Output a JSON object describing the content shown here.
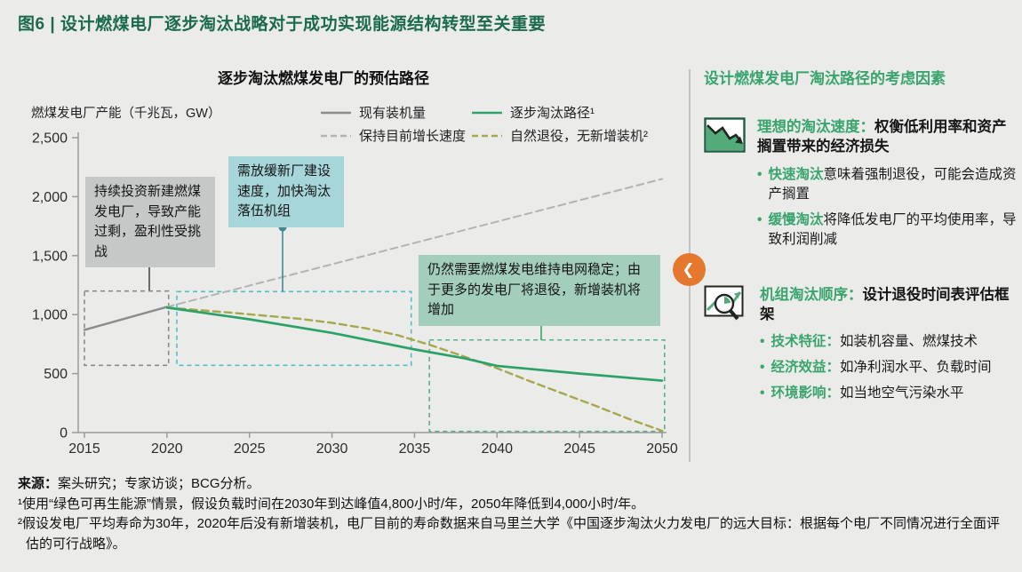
{
  "figure": {
    "title": "图6 | 设计燃煤电厂逐步淘汰战略对于成功实现能源结构转型至关重要"
  },
  "chart": {
    "title": "逐步淘汰燃煤发电厂的预估路径",
    "y_axis_label": "燃煤发电厂产能（千兆瓦，GW）",
    "legend": [
      {
        "label": "现有装机量",
        "color": "#8b8d8c",
        "dash": false
      },
      {
        "label": "逐步淘汰路径¹",
        "color": "#2da268",
        "dash": false
      },
      {
        "label": "保持目前增长速度",
        "color": "#b2b4b3",
        "dash": true
      },
      {
        "label": "自然退役，无新增装机²",
        "color": "#a6a84b",
        "dash": true
      }
    ],
    "annotations": [
      {
        "text": "持续投资新建燃煤发电厂，导致产能过剩，盈利性受挑战"
      },
      {
        "text": "需放缓新厂建设速度，加快淘汰落伍机组"
      },
      {
        "text": "仍然需要燃煤发电维持电网稳定；由于更多的发电厂将退役，新增装机将增加"
      }
    ]
  },
  "chart_data": {
    "type": "line",
    "title": "逐步淘汰燃煤发电厂的预估路径",
    "xlabel": "",
    "ylabel": "燃煤发电厂产能（千兆瓦，GW）",
    "xlim": [
      2015,
      2050
    ],
    "ylim": [
      0,
      2500
    ],
    "x_ticks": [
      2015,
      2020,
      2025,
      2030,
      2035,
      2040,
      2045,
      2050
    ],
    "y_ticks": [
      {
        "value": 2500,
        "label": "2,500"
      },
      {
        "value": 2000,
        "label": "2,000"
      },
      {
        "value": 1500,
        "label": "1,500"
      },
      {
        "value": 1000,
        "label": "1,000"
      },
      {
        "value": 500,
        "label": "500"
      },
      {
        "value": 0,
        "label": "0"
      }
    ],
    "grid": false,
    "legend_position": "top",
    "series": [
      {
        "name": "现有装机量",
        "style": "solid",
        "color": "#8b8d8c",
        "width": 2.4,
        "points": [
          [
            2015,
            870
          ],
          [
            2020,
            1065
          ]
        ]
      },
      {
        "name": "保持目前增长速度",
        "style": "dashed",
        "color": "#b2b4b3",
        "width": 2,
        "points": [
          [
            2020,
            1065
          ],
          [
            2050,
            2150
          ]
        ]
      },
      {
        "name": "自然退役，无新增装机²",
        "style": "dashed",
        "color": "#a6a84b",
        "width": 2.4,
        "points": [
          [
            2020,
            1060
          ],
          [
            2024,
            1015
          ],
          [
            2028,
            965
          ],
          [
            2030,
            930
          ],
          [
            2032,
            885
          ],
          [
            2034,
            825
          ],
          [
            2036,
            740
          ],
          [
            2038,
            645
          ],
          [
            2040,
            545
          ],
          [
            2042,
            435
          ],
          [
            2044,
            330
          ],
          [
            2046,
            225
          ],
          [
            2048,
            115
          ],
          [
            2050,
            15
          ]
        ]
      },
      {
        "name": "逐步淘汰路径¹",
        "style": "solid",
        "color": "#2da268",
        "width": 2.7,
        "points": [
          [
            2020,
            1060
          ],
          [
            2025,
            960
          ],
          [
            2030,
            845
          ],
          [
            2035,
            705
          ],
          [
            2038,
            630
          ],
          [
            2040,
            565
          ],
          [
            2045,
            500
          ],
          [
            2050,
            440
          ]
        ]
      }
    ],
    "highlight_boxes": [
      {
        "x0": 2015,
        "x1": 2020.1,
        "y0": 570,
        "y1": 1200,
        "color": "#8a8c8b"
      },
      {
        "x0": 2020.6,
        "x1": 2034.8,
        "y0": 570,
        "y1": 1195,
        "color": "#55bec2"
      },
      {
        "x0": 2035.9,
        "x1": 2050.15,
        "y0": 10,
        "y1": 785,
        "color": "#55b189"
      }
    ]
  },
  "right_panel": {
    "title": "设计燃煤发电厂淘汰路径的考虑因素",
    "sections": [
      {
        "icon": "downtrend-chart-icon",
        "heading_highlight": "理想的淘汰速度：",
        "heading_rest": "权衡低利用率和资产搁置带来的经济损失",
        "bullets": [
          {
            "highlight": "快速淘汰",
            "rest": "意味着强制退役，可能会造成资产搁置"
          },
          {
            "highlight": "缓慢淘汰",
            "rest": "将降低发电厂的平均使用率，导致利润削减"
          }
        ]
      },
      {
        "icon": "magnifier-chart-icon",
        "heading_highlight": "机组淘汰顺序：",
        "heading_rest": "设计退役时间表评估框架",
        "bullets": [
          {
            "highlight": "技术特征：",
            "rest": "如装机容量、燃煤技术"
          },
          {
            "highlight": "经济效益：",
            "rest": "如净利润水平、负载时间"
          },
          {
            "highlight": "环境影响：",
            "rest": "如当地空气污染水平"
          }
        ]
      }
    ]
  },
  "footer": {
    "source_label": "来源：",
    "source_text": "案头研究；专家访谈；BCG分析。",
    "notes": [
      "¹使用“绿色可再生能源”情景，假设负载时间在2030年到达峰值4,800小时/年，2050年降低到4,000小时/年。",
      "²假设发电厂平均寿命为30年，2020年后没有新增装机，电厂目前的寿命数据来自马里兰大学《中国逐步淘汰火力发电厂的远大目标：根据每个电厂不同情况进行全面评估的可行战略》。"
    ]
  },
  "icons": {
    "chevron_left": "❮"
  },
  "colors": {
    "background": "#ebecea",
    "title_green": "#1b6a4c",
    "accent_green": "#3aa46d",
    "line_green": "#2da268",
    "line_olive": "#a6a84b",
    "line_gray": "#8b8d8c",
    "box_gray": "#c6c8c7",
    "box_teal": "#a7d6da",
    "box_green": "#a2cebb",
    "nav_orange": "#e5772f"
  }
}
